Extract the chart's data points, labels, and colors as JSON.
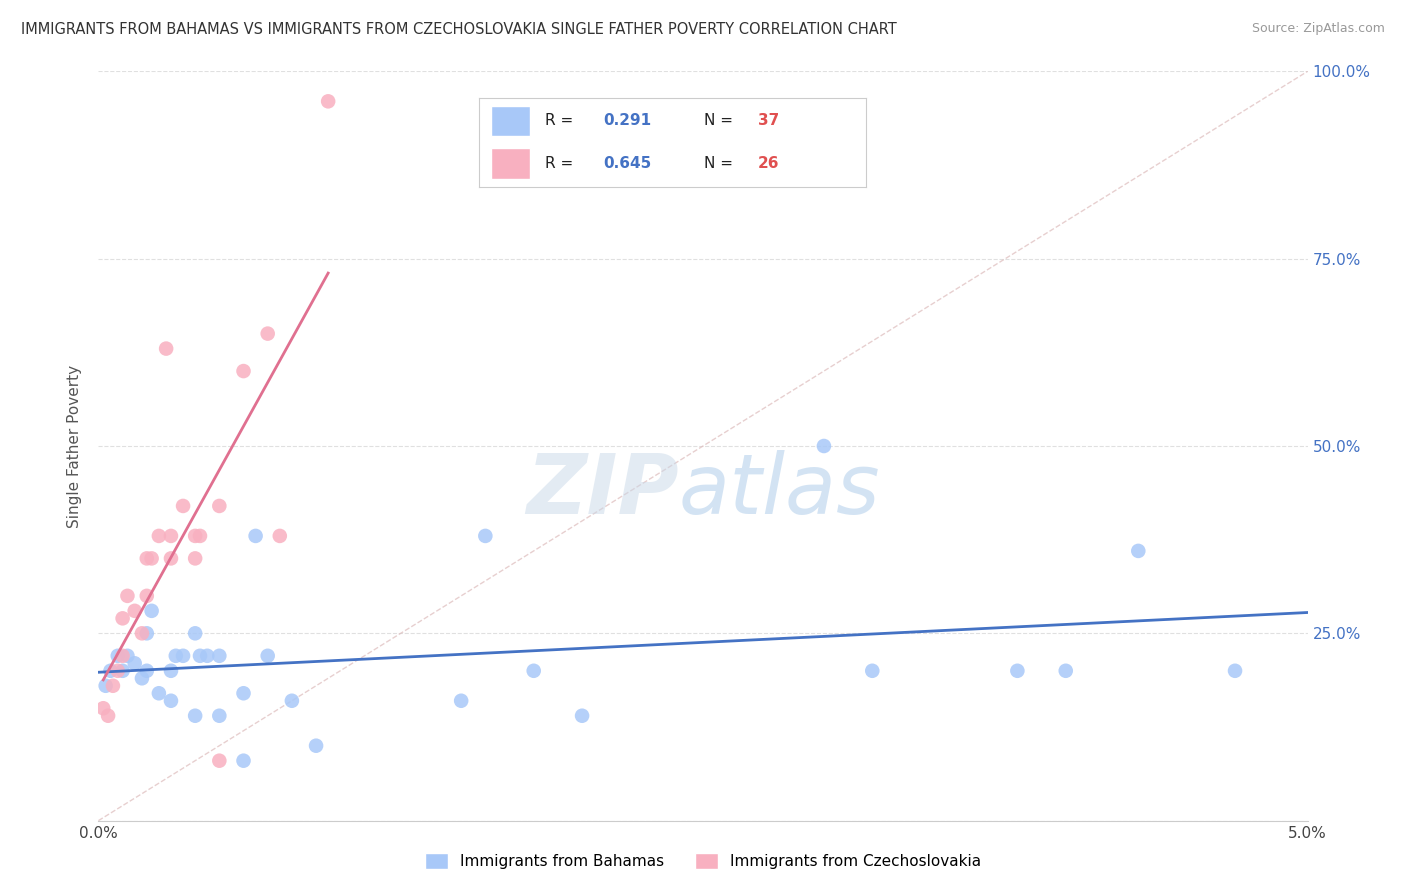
{
  "title": "IMMIGRANTS FROM BAHAMAS VS IMMIGRANTS FROM CZECHOSLOVAKIA SINGLE FATHER POVERTY CORRELATION CHART",
  "source": "Source: ZipAtlas.com",
  "ylabel": "Single Father Poverty",
  "legend_label1": "Immigrants from Bahamas",
  "legend_label2": "Immigrants from Czechoslovakia",
  "R1": "0.291",
  "N1": "37",
  "R2": "0.645",
  "N2": "26",
  "color1": "#a8c8f8",
  "color2": "#f8b0c0",
  "line_color1": "#4472c4",
  "line_color2": "#e07090",
  "rv_color": "#4472c4",
  "nv_color": "#e05050",
  "background_color": "#ffffff",
  "watermark_zip": "ZIP",
  "watermark_atlas": "atlas",
  "xlim": [
    0.0,
    0.05
  ],
  "ylim": [
    0.0,
    1.0
  ],
  "blue_x": [
    0.0003,
    0.0005,
    0.0008,
    0.001,
    0.0012,
    0.0015,
    0.0018,
    0.002,
    0.002,
    0.0022,
    0.0025,
    0.003,
    0.003,
    0.0032,
    0.0035,
    0.004,
    0.004,
    0.0042,
    0.0045,
    0.005,
    0.005,
    0.006,
    0.006,
    0.0065,
    0.007,
    0.008,
    0.009,
    0.015,
    0.016,
    0.018,
    0.02,
    0.03,
    0.032,
    0.038,
    0.04,
    0.043,
    0.047
  ],
  "blue_y": [
    0.18,
    0.2,
    0.22,
    0.2,
    0.22,
    0.21,
    0.19,
    0.25,
    0.2,
    0.28,
    0.17,
    0.16,
    0.2,
    0.22,
    0.22,
    0.14,
    0.25,
    0.22,
    0.22,
    0.22,
    0.14,
    0.08,
    0.17,
    0.38,
    0.22,
    0.16,
    0.1,
    0.16,
    0.38,
    0.2,
    0.14,
    0.5,
    0.2,
    0.2,
    0.2,
    0.36,
    0.2
  ],
  "pink_x": [
    0.0002,
    0.0004,
    0.0006,
    0.0008,
    0.001,
    0.001,
    0.0012,
    0.0015,
    0.0018,
    0.002,
    0.002,
    0.0022,
    0.0025,
    0.0028,
    0.003,
    0.003,
    0.0035,
    0.004,
    0.004,
    0.0042,
    0.005,
    0.005,
    0.006,
    0.007,
    0.0075,
    0.0095
  ],
  "pink_y": [
    0.15,
    0.14,
    0.18,
    0.2,
    0.22,
    0.27,
    0.3,
    0.28,
    0.25,
    0.3,
    0.35,
    0.35,
    0.38,
    0.63,
    0.35,
    0.38,
    0.42,
    0.35,
    0.38,
    0.38,
    0.42,
    0.08,
    0.6,
    0.65,
    0.38,
    0.96
  ]
}
